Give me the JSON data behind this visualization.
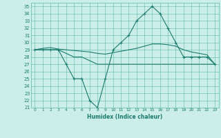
{
  "xlabel": "Humidex (Indice chaleur)",
  "ylabel": "",
  "x": [
    0,
    1,
    2,
    3,
    4,
    5,
    6,
    7,
    8,
    9,
    10,
    11,
    12,
    13,
    14,
    15,
    16,
    17,
    18,
    19,
    20,
    21,
    22,
    23
  ],
  "line_max": [
    29,
    29,
    29,
    29,
    27,
    25,
    25,
    22,
    21,
    25,
    29,
    30,
    31,
    33,
    34,
    35,
    34,
    32,
    30,
    28,
    28,
    28,
    28,
    27
  ],
  "line_mean": [
    29,
    29.2,
    29.3,
    29.1,
    29.0,
    28.9,
    28.8,
    28.7,
    28.5,
    28.4,
    28.6,
    28.8,
    29.0,
    29.2,
    29.5,
    29.8,
    29.8,
    29.7,
    29.5,
    29.0,
    28.7,
    28.5,
    28.3,
    27.0
  ],
  "line_min": [
    29,
    29,
    29,
    29,
    28.5,
    28,
    28,
    27.5,
    27,
    27,
    27,
    27,
    27,
    27,
    27,
    27,
    27,
    27,
    27,
    27,
    27,
    27,
    27,
    27
  ],
  "color": "#1a7a6e",
  "bg_color": "#cceee8",
  "grid_color": "#5db8a8",
  "ylim": [
    21,
    35.5
  ],
  "xlim": [
    -0.5,
    23.5
  ],
  "yticks": [
    21,
    22,
    23,
    24,
    25,
    26,
    27,
    28,
    29,
    30,
    31,
    32,
    33,
    34,
    35
  ],
  "xticks": [
    0,
    1,
    2,
    3,
    4,
    5,
    6,
    7,
    8,
    9,
    10,
    11,
    12,
    13,
    14,
    15,
    16,
    17,
    18,
    19,
    20,
    21,
    22,
    23
  ]
}
